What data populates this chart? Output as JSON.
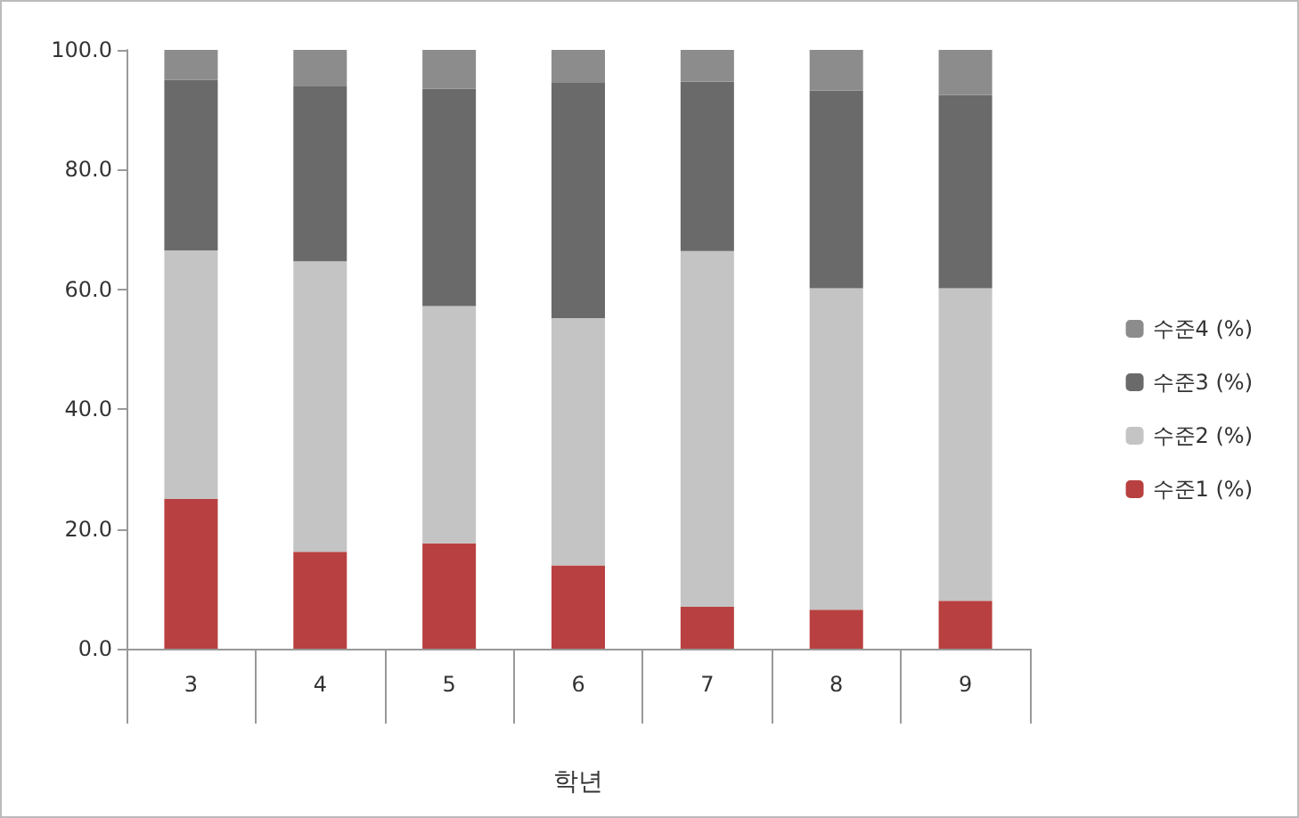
{
  "chart_data": {
    "type": "bar",
    "stacked": true,
    "xlabel": "학년",
    "categories": [
      "3",
      "4",
      "5",
      "6",
      "7",
      "8",
      "9"
    ],
    "series": [
      {
        "name": "수준1 (%)",
        "color": "#b94040",
        "values": [
          25,
          16.2,
          17.6,
          13.9,
          7,
          6.5,
          8
        ]
      },
      {
        "name": "수준2 (%)",
        "color": "#c4c4c4",
        "values": [
          41.5,
          48.5,
          39.6,
          41.3,
          59.4,
          53.7,
          52.2
        ]
      },
      {
        "name": "수준3 (%)",
        "color": "#6a6a6a",
        "values": [
          28.5,
          29.3,
          36.3,
          39.3,
          28.3,
          33,
          32.3
        ]
      },
      {
        "name": "수준4 (%)",
        "color": "#8c8c8c",
        "values": [
          5,
          6,
          6.5,
          5.5,
          5.3,
          6.8,
          7.5
        ]
      }
    ],
    "ylim": [
      0,
      100
    ],
    "yticks": [
      {
        "value": 0,
        "label": "0.0"
      },
      {
        "value": 20,
        "label": "20.0"
      },
      {
        "value": 40,
        "label": "40.0"
      },
      {
        "value": 60,
        "label": "60.0"
      },
      {
        "value": 80,
        "label": "80.0"
      },
      {
        "value": 100,
        "label": "100.0"
      }
    ],
    "grid": false,
    "legend": "right"
  }
}
